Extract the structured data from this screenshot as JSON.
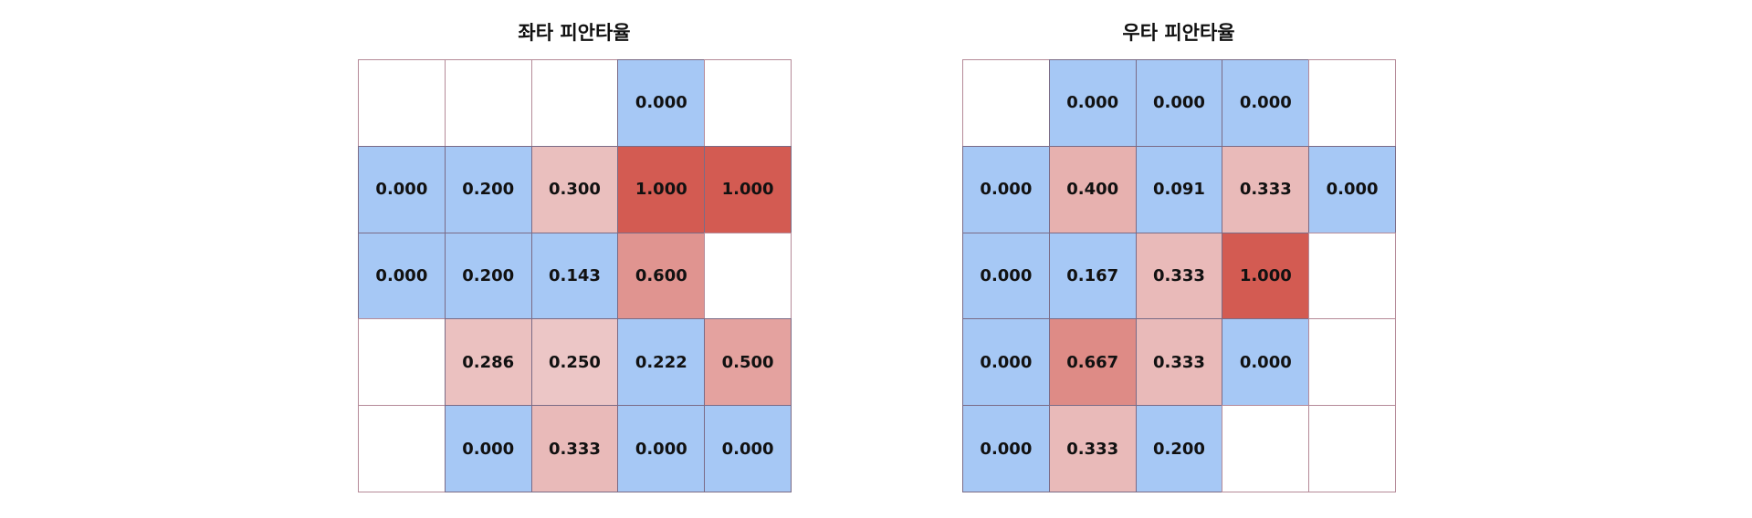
{
  "chart_data": [
    {
      "type": "heatmap",
      "title": "좌타 피안타율",
      "rows": 5,
      "cols": 5,
      "values": [
        [
          null,
          null,
          null,
          0.0,
          null
        ],
        [
          0.0,
          0.2,
          0.3,
          1.0,
          1.0
        ],
        [
          0.0,
          0.2,
          0.143,
          0.6,
          null
        ],
        [
          null,
          0.286,
          0.25,
          0.222,
          0.5
        ],
        [
          null,
          0.0,
          0.333,
          0.0,
          0.0
        ]
      ],
      "labels": [
        [
          "",
          "",
          "",
          "0.000",
          ""
        ],
        [
          "0.000",
          "0.200",
          "0.300",
          "1.000",
          "1.000"
        ],
        [
          "0.000",
          "0.200",
          "0.143",
          "0.600",
          ""
        ],
        [
          "",
          "0.286",
          "0.250",
          "0.222",
          "0.500"
        ],
        [
          "",
          "0.000",
          "0.333",
          "0.000",
          "0.000"
        ]
      ],
      "threshold": 0.25,
      "colors": {
        "low": "#a6c8f5",
        "high_light": "#ecc6c6",
        "high_dark": "#d35b52",
        "empty": "#ffffff"
      }
    },
    {
      "type": "heatmap",
      "title": "우타 피안타율",
      "rows": 5,
      "cols": 5,
      "values": [
        [
          null,
          0.0,
          0.0,
          0.0,
          null
        ],
        [
          0.0,
          0.4,
          0.091,
          0.333,
          0.0
        ],
        [
          0.0,
          0.167,
          0.333,
          1.0,
          null
        ],
        [
          0.0,
          0.667,
          0.333,
          0.0,
          null
        ],
        [
          0.0,
          0.333,
          0.2,
          null,
          null
        ]
      ],
      "labels": [
        [
          "",
          "0.000",
          "0.000",
          "0.000",
          ""
        ],
        [
          "0.000",
          "0.400",
          "0.091",
          "0.333",
          "0.000"
        ],
        [
          "0.000",
          "0.167",
          "0.333",
          "1.000",
          ""
        ],
        [
          "0.000",
          "0.667",
          "0.333",
          "0.000",
          ""
        ],
        [
          "0.000",
          "0.333",
          "0.200",
          "",
          ""
        ]
      ],
      "threshold": 0.25,
      "colors": {
        "low": "#a6c8f5",
        "high_light": "#ecc6c6",
        "high_dark": "#d35b52",
        "empty": "#ffffff"
      }
    }
  ]
}
